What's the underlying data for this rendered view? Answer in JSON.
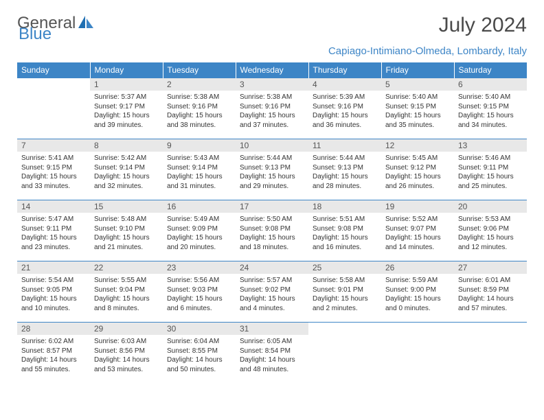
{
  "logo": {
    "text1": "General",
    "text2": "Blue"
  },
  "title": "July 2024",
  "location": "Capiago-Intimiano-Olmeda, Lombardy, Italy",
  "colors": {
    "header_bg": "#3d85c6",
    "header_text": "#ffffff",
    "daynum_bg": "#e8e8e8",
    "location_text": "#3d85c6",
    "border": "#3d85c6"
  },
  "fonts": {
    "title_size": 30,
    "header_size": 12,
    "daynum_size": 12,
    "content_size": 10
  },
  "day_labels": [
    "Sunday",
    "Monday",
    "Tuesday",
    "Wednesday",
    "Thursday",
    "Friday",
    "Saturday"
  ],
  "weeks": [
    [
      null,
      {
        "n": "1",
        "sr": "5:37 AM",
        "ss": "9:17 PM",
        "dl": "15 hours and 39 minutes."
      },
      {
        "n": "2",
        "sr": "5:38 AM",
        "ss": "9:16 PM",
        "dl": "15 hours and 38 minutes."
      },
      {
        "n": "3",
        "sr": "5:38 AM",
        "ss": "9:16 PM",
        "dl": "15 hours and 37 minutes."
      },
      {
        "n": "4",
        "sr": "5:39 AM",
        "ss": "9:16 PM",
        "dl": "15 hours and 36 minutes."
      },
      {
        "n": "5",
        "sr": "5:40 AM",
        "ss": "9:15 PM",
        "dl": "15 hours and 35 minutes."
      },
      {
        "n": "6",
        "sr": "5:40 AM",
        "ss": "9:15 PM",
        "dl": "15 hours and 34 minutes."
      }
    ],
    [
      {
        "n": "7",
        "sr": "5:41 AM",
        "ss": "9:15 PM",
        "dl": "15 hours and 33 minutes."
      },
      {
        "n": "8",
        "sr": "5:42 AM",
        "ss": "9:14 PM",
        "dl": "15 hours and 32 minutes."
      },
      {
        "n": "9",
        "sr": "5:43 AM",
        "ss": "9:14 PM",
        "dl": "15 hours and 31 minutes."
      },
      {
        "n": "10",
        "sr": "5:44 AM",
        "ss": "9:13 PM",
        "dl": "15 hours and 29 minutes."
      },
      {
        "n": "11",
        "sr": "5:44 AM",
        "ss": "9:13 PM",
        "dl": "15 hours and 28 minutes."
      },
      {
        "n": "12",
        "sr": "5:45 AM",
        "ss": "9:12 PM",
        "dl": "15 hours and 26 minutes."
      },
      {
        "n": "13",
        "sr": "5:46 AM",
        "ss": "9:11 PM",
        "dl": "15 hours and 25 minutes."
      }
    ],
    [
      {
        "n": "14",
        "sr": "5:47 AM",
        "ss": "9:11 PM",
        "dl": "15 hours and 23 minutes."
      },
      {
        "n": "15",
        "sr": "5:48 AM",
        "ss": "9:10 PM",
        "dl": "15 hours and 21 minutes."
      },
      {
        "n": "16",
        "sr": "5:49 AM",
        "ss": "9:09 PM",
        "dl": "15 hours and 20 minutes."
      },
      {
        "n": "17",
        "sr": "5:50 AM",
        "ss": "9:08 PM",
        "dl": "15 hours and 18 minutes."
      },
      {
        "n": "18",
        "sr": "5:51 AM",
        "ss": "9:08 PM",
        "dl": "15 hours and 16 minutes."
      },
      {
        "n": "19",
        "sr": "5:52 AM",
        "ss": "9:07 PM",
        "dl": "15 hours and 14 minutes."
      },
      {
        "n": "20",
        "sr": "5:53 AM",
        "ss": "9:06 PM",
        "dl": "15 hours and 12 minutes."
      }
    ],
    [
      {
        "n": "21",
        "sr": "5:54 AM",
        "ss": "9:05 PM",
        "dl": "15 hours and 10 minutes."
      },
      {
        "n": "22",
        "sr": "5:55 AM",
        "ss": "9:04 PM",
        "dl": "15 hours and 8 minutes."
      },
      {
        "n": "23",
        "sr": "5:56 AM",
        "ss": "9:03 PM",
        "dl": "15 hours and 6 minutes."
      },
      {
        "n": "24",
        "sr": "5:57 AM",
        "ss": "9:02 PM",
        "dl": "15 hours and 4 minutes."
      },
      {
        "n": "25",
        "sr": "5:58 AM",
        "ss": "9:01 PM",
        "dl": "15 hours and 2 minutes."
      },
      {
        "n": "26",
        "sr": "5:59 AM",
        "ss": "9:00 PM",
        "dl": "15 hours and 0 minutes."
      },
      {
        "n": "27",
        "sr": "6:01 AM",
        "ss": "8:59 PM",
        "dl": "14 hours and 57 minutes."
      }
    ],
    [
      {
        "n": "28",
        "sr": "6:02 AM",
        "ss": "8:57 PM",
        "dl": "14 hours and 55 minutes."
      },
      {
        "n": "29",
        "sr": "6:03 AM",
        "ss": "8:56 PM",
        "dl": "14 hours and 53 minutes."
      },
      {
        "n": "30",
        "sr": "6:04 AM",
        "ss": "8:55 PM",
        "dl": "14 hours and 50 minutes."
      },
      {
        "n": "31",
        "sr": "6:05 AM",
        "ss": "8:54 PM",
        "dl": "14 hours and 48 minutes."
      },
      null,
      null,
      null
    ]
  ],
  "labels": {
    "sunrise_prefix": "Sunrise: ",
    "sunset_prefix": "Sunset: ",
    "daylight_prefix": "Daylight: "
  }
}
